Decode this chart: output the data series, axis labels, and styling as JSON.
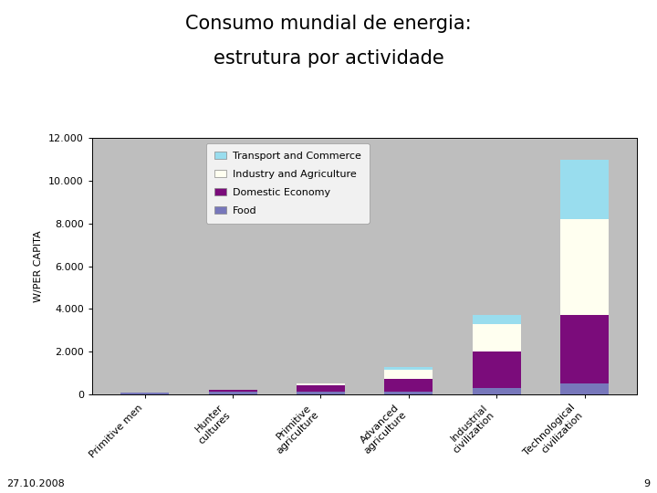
{
  "title_line1": "Consumo mundial de energia:",
  "title_line2": "estrutura por actividade",
  "ylabel": "W/PER CAPITA",
  "categories": [
    "Primitive men",
    "Hunter\ncultures",
    "Primitive\nagriculture",
    "Advanced\nagriculture",
    "Industrial\ncivilization",
    "Technological\ncivilization"
  ],
  "food": [
    100,
    120,
    120,
    120,
    300,
    500
  ],
  "domestic": [
    0,
    80,
    300,
    600,
    1700,
    3200
  ],
  "industry": [
    0,
    0,
    80,
    430,
    1300,
    4500
  ],
  "transport": [
    0,
    0,
    30,
    150,
    400,
    2800
  ],
  "colors": {
    "food": "#7777bb",
    "domestic": "#7b0c7b",
    "industry": "#fffff0",
    "transport": "#99ddee"
  },
  "ylim": [
    0,
    12000
  ],
  "yticks": [
    0,
    2000,
    4000,
    6000,
    8000,
    10000,
    12000
  ],
  "ytick_labels": [
    "0",
    "2.000",
    "4.000",
    "6.000",
    "8.000",
    "10.000",
    "12.000"
  ],
  "plot_bg_color": "#bebebe",
  "bar_width": 0.55,
  "date_label": "27.10.2008",
  "page_num": "9",
  "title_fontsize": 15,
  "axis_label_fontsize": 8,
  "tick_fontsize": 8,
  "legend_fontsize": 8
}
